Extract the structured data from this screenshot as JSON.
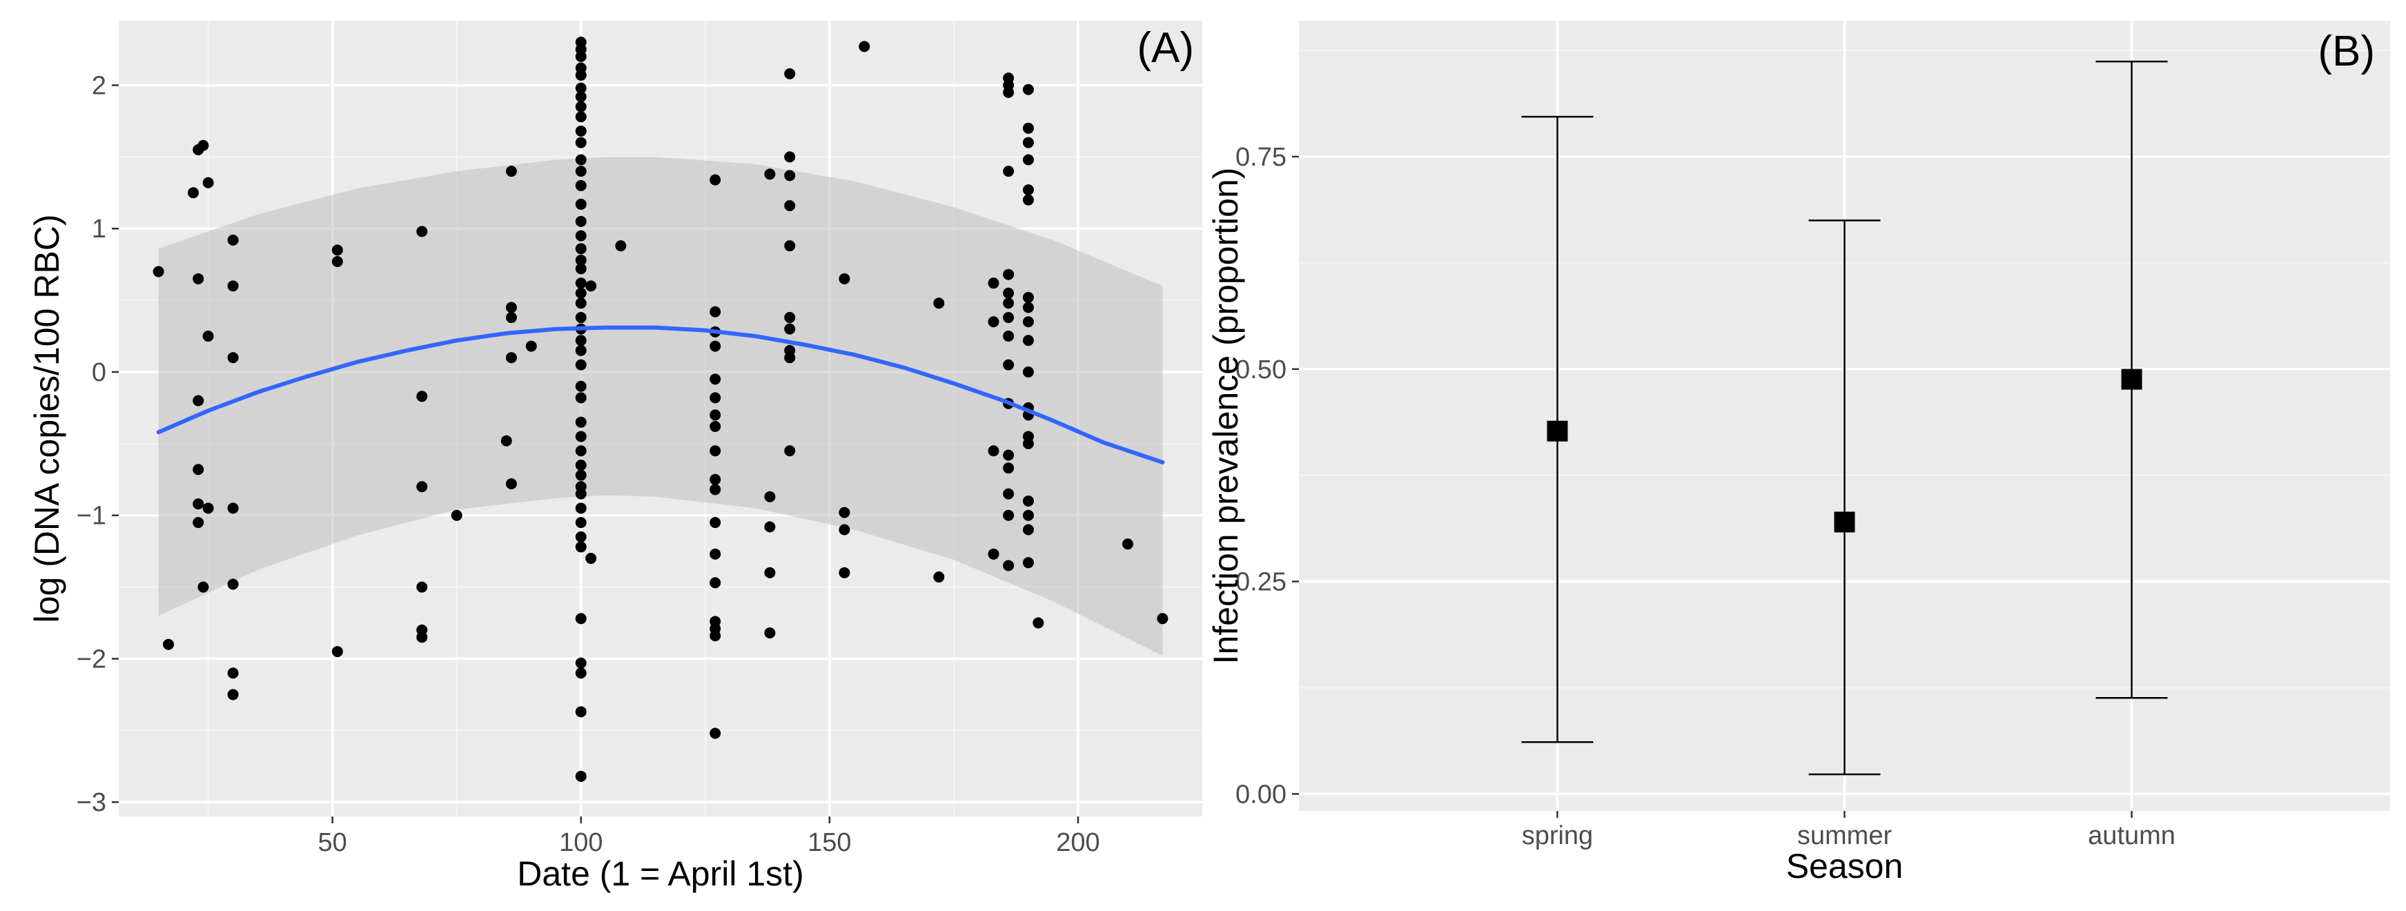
{
  "colors": {
    "panel_bg": "#ebebeb",
    "grid_major": "#ffffff",
    "grid_minor": "#f5f5f5",
    "ribbon": "#bfbfbf",
    "ribbon_opacity": 0.55,
    "trend": "#3366ff",
    "points": "#000000",
    "tick_text": "#4d4d4d"
  },
  "chart_data": [
    {
      "panel_label": "(A)",
      "type": "scatter",
      "xlabel": "Date (1 = April 1st)",
      "ylabel": "log (DNA copies/100 RBC)",
      "xlim": [
        7,
        225
      ],
      "ylim": [
        -3.1,
        2.45
      ],
      "xticks": [
        50,
        100,
        150,
        200
      ],
      "yticks": [
        -3,
        -2,
        -1,
        0,
        1,
        2
      ],
      "ytick_labels": [
        "−3",
        "−2",
        "−1",
        "0",
        "1",
        "2"
      ],
      "points": [
        [
          15,
          0.7
        ],
        [
          17,
          -1.9
        ],
        [
          23,
          1.55
        ],
        [
          24,
          1.58
        ],
        [
          22,
          1.25
        ],
        [
          25,
          1.32
        ],
        [
          23,
          0.65
        ],
        [
          25,
          0.25
        ],
        [
          23,
          -0.2
        ],
        [
          23,
          -0.68
        ],
        [
          23,
          -0.92
        ],
        [
          23,
          -1.05
        ],
        [
          25,
          -0.95
        ],
        [
          24,
          -1.5
        ],
        [
          30,
          0.92
        ],
        [
          30,
          0.6
        ],
        [
          30,
          0.1
        ],
        [
          30,
          -0.95
        ],
        [
          30,
          -1.48
        ],
        [
          30,
          -2.1
        ],
        [
          30,
          -2.25
        ],
        [
          51,
          0.85
        ],
        [
          51,
          0.77
        ],
        [
          51,
          -1.95
        ],
        [
          68,
          0.98
        ],
        [
          68,
          -0.17
        ],
        [
          68,
          -0.8
        ],
        [
          68,
          -1.5
        ],
        [
          68,
          -1.8
        ],
        [
          68,
          -1.85
        ],
        [
          75,
          -1.0
        ],
        [
          86,
          1.4
        ],
        [
          86,
          0.45
        ],
        [
          86,
          0.38
        ],
        [
          86,
          0.1
        ],
        [
          85,
          -0.48
        ],
        [
          86,
          -0.78
        ],
        [
          90,
          0.18
        ],
        [
          100,
          2.3
        ],
        [
          100,
          2.25
        ],
        [
          100,
          2.2
        ],
        [
          100,
          2.12
        ],
        [
          100,
          2.07
        ],
        [
          100,
          1.98
        ],
        [
          100,
          1.92
        ],
        [
          100,
          1.85
        ],
        [
          100,
          1.78
        ],
        [
          100,
          1.68
        ],
        [
          100,
          1.6
        ],
        [
          100,
          1.48
        ],
        [
          100,
          1.4
        ],
        [
          100,
          1.3
        ],
        [
          100,
          1.17
        ],
        [
          100,
          1.05
        ],
        [
          100,
          0.95
        ],
        [
          100,
          0.86
        ],
        [
          100,
          0.78
        ],
        [
          100,
          0.72
        ],
        [
          100,
          0.62
        ],
        [
          100,
          0.55
        ],
        [
          100,
          0.48
        ],
        [
          100,
          0.38
        ],
        [
          100,
          0.3
        ],
        [
          100,
          0.22
        ],
        [
          100,
          0.15
        ],
        [
          100,
          0.05
        ],
        [
          100,
          -0.1
        ],
        [
          100,
          -0.18
        ],
        [
          100,
          -0.35
        ],
        [
          100,
          -0.45
        ],
        [
          100,
          -0.55
        ],
        [
          100,
          -0.65
        ],
        [
          100,
          -0.72
        ],
        [
          100,
          -0.8
        ],
        [
          100,
          -0.85
        ],
        [
          100,
          -0.95
        ],
        [
          100,
          -1.05
        ],
        [
          100,
          -1.15
        ],
        [
          100,
          -1.22
        ],
        [
          100,
          -1.72
        ],
        [
          100,
          -2.03
        ],
        [
          100,
          -2.1
        ],
        [
          100,
          -2.37
        ],
        [
          100,
          -2.82
        ],
        [
          102,
          0.6
        ],
        [
          102,
          -1.3
        ],
        [
          108,
          0.88
        ],
        [
          127,
          1.34
        ],
        [
          127,
          0.42
        ],
        [
          127,
          0.28
        ],
        [
          127,
          0.18
        ],
        [
          127,
          -0.05
        ],
        [
          127,
          -0.18
        ],
        [
          127,
          -0.3
        ],
        [
          127,
          -0.38
        ],
        [
          127,
          -0.55
        ],
        [
          127,
          -0.75
        ],
        [
          127,
          -0.82
        ],
        [
          127,
          -1.05
        ],
        [
          127,
          -1.27
        ],
        [
          127,
          -1.47
        ],
        [
          127,
          -1.74
        ],
        [
          127,
          -1.79
        ],
        [
          127,
          -1.84
        ],
        [
          127,
          -2.52
        ],
        [
          138,
          1.38
        ],
        [
          138,
          -0.87
        ],
        [
          138,
          -1.08
        ],
        [
          138,
          -1.4
        ],
        [
          138,
          -1.82
        ],
        [
          142,
          2.08
        ],
        [
          142,
          1.5
        ],
        [
          142,
          1.37
        ],
        [
          142,
          1.16
        ],
        [
          142,
          0.88
        ],
        [
          142,
          0.38
        ],
        [
          142,
          0.3
        ],
        [
          142,
          0.15
        ],
        [
          142,
          0.1
        ],
        [
          142,
          -0.55
        ],
        [
          153,
          0.65
        ],
        [
          153,
          -0.98
        ],
        [
          153,
          -1.1
        ],
        [
          153,
          -1.4
        ],
        [
          157,
          2.27
        ],
        [
          172,
          0.48
        ],
        [
          172,
          -1.43
        ],
        [
          183,
          0.62
        ],
        [
          183,
          0.35
        ],
        [
          183,
          -0.55
        ],
        [
          183,
          -1.27
        ],
        [
          186,
          2.05
        ],
        [
          186,
          2.0
        ],
        [
          186,
          1.95
        ],
        [
          186,
          1.4
        ],
        [
          186,
          0.68
        ],
        [
          186,
          0.55
        ],
        [
          186,
          0.48
        ],
        [
          186,
          0.38
        ],
        [
          186,
          0.25
        ],
        [
          186,
          0.05
        ],
        [
          186,
          -0.22
        ],
        [
          186,
          -0.58
        ],
        [
          186,
          -0.67
        ],
        [
          186,
          -0.85
        ],
        [
          186,
          -1.0
        ],
        [
          186,
          -1.35
        ],
        [
          190,
          1.97
        ],
        [
          190,
          1.7
        ],
        [
          190,
          1.6
        ],
        [
          190,
          1.48
        ],
        [
          190,
          1.27
        ],
        [
          190,
          1.2
        ],
        [
          190,
          0.52
        ],
        [
          190,
          0.45
        ],
        [
          190,
          0.35
        ],
        [
          190,
          0.22
        ],
        [
          190,
          0.0
        ],
        [
          190,
          -0.25
        ],
        [
          190,
          -0.3
        ],
        [
          190,
          -0.45
        ],
        [
          190,
          -0.5
        ],
        [
          190,
          -0.9
        ],
        [
          190,
          -1.0
        ],
        [
          190,
          -1.1
        ],
        [
          190,
          -1.33
        ],
        [
          192,
          -1.75
        ],
        [
          210,
          -1.2
        ],
        [
          217,
          -1.72
        ]
      ],
      "trend_line": {
        "x": [
          15,
          25,
          35,
          45,
          55,
          65,
          75,
          85,
          95,
          105,
          115,
          125,
          135,
          145,
          155,
          165,
          175,
          185,
          195,
          205,
          217
        ],
        "y": [
          -0.42,
          -0.27,
          -0.14,
          -0.03,
          0.07,
          0.15,
          0.22,
          0.27,
          0.3,
          0.31,
          0.31,
          0.29,
          0.25,
          0.19,
          0.12,
          0.03,
          -0.08,
          -0.2,
          -0.34,
          -0.49,
          -0.63
        ]
      },
      "ribbon": {
        "x": [
          15,
          35,
          55,
          75,
          95,
          105,
          115,
          135,
          155,
          175,
          195,
          217
        ],
        "upper": [
          0.86,
          1.1,
          1.28,
          1.4,
          1.48,
          1.5,
          1.5,
          1.45,
          1.33,
          1.15,
          0.92,
          0.6
        ],
        "lower": [
          -1.7,
          -1.38,
          -1.14,
          -0.96,
          -0.88,
          -0.86,
          -0.87,
          -0.95,
          -1.1,
          -1.31,
          -1.6,
          -1.98
        ]
      }
    },
    {
      "panel_label": "(B)",
      "type": "errorbar",
      "xlabel": "Season",
      "ylabel": "Infection prevalence (proportion)",
      "categories": [
        "spring",
        "summer",
        "autumn"
      ],
      "values": [
        0.427,
        0.32,
        0.488
      ],
      "lower": [
        0.061,
        0.023,
        0.113
      ],
      "upper": [
        0.797,
        0.675,
        0.862
      ],
      "ylim": [
        -0.02,
        0.91
      ],
      "yticks": [
        0.0,
        0.25,
        0.5,
        0.75
      ],
      "ytick_labels": [
        "0.00",
        "0.25",
        "0.50",
        "0.75"
      ]
    }
  ]
}
